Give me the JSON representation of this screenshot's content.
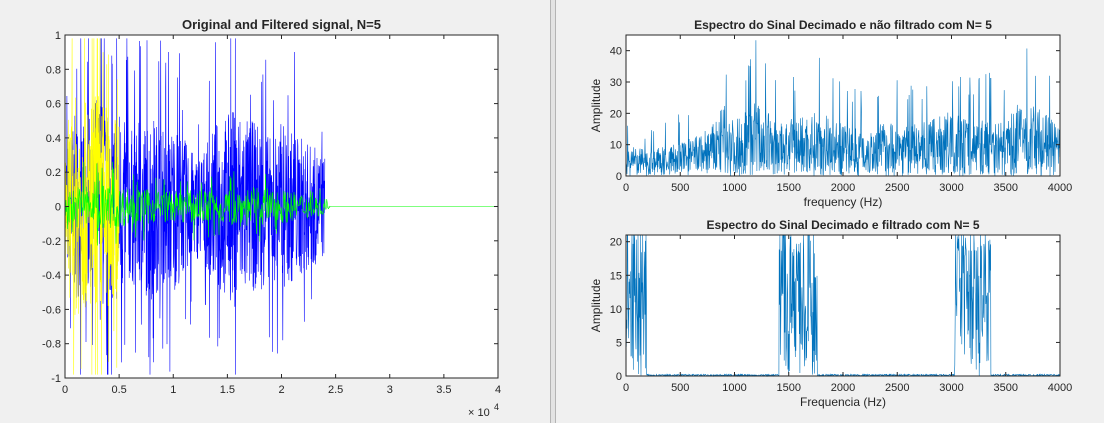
{
  "colors": {
    "figure_bg": "#f0f0f0",
    "axes_bg": "#ffffff",
    "axis": "#262626",
    "original": "#0000ff",
    "filtered": "#00ff00",
    "highlight": "#ffff00",
    "spectrum": "#0072bd"
  },
  "chart_data": [
    {
      "type": "line",
      "title": "Original and Filtered signal, N=5",
      "xlabel": "",
      "ylabel": "",
      "xlim": [
        0,
        40000
      ],
      "ylim": [
        -1,
        1
      ],
      "x_ticks": [
        0,
        5000,
        10000,
        15000,
        20000,
        25000,
        30000,
        35000,
        40000
      ],
      "x_tick_labels": [
        "0",
        "0.5",
        "1",
        "1.5",
        "2",
        "2.5",
        "3",
        "3.5",
        "4"
      ],
      "x_exponent_label": "× 10",
      "x_exponent_power": "4",
      "y_ticks": [
        -1,
        -0.8,
        -0.6,
        -0.4,
        -0.2,
        0,
        0.2,
        0.4,
        0.6,
        0.8,
        1
      ],
      "y_tick_labels": [
        "-1",
        "-0.8",
        "-0.6",
        "-0.4",
        "-0.2",
        "0",
        "0.2",
        "0.4",
        "0.6",
        "0.8",
        "1"
      ],
      "grid": false,
      "series": [
        {
          "color": "#0000ff",
          "x_range": [
            0,
            24000
          ],
          "envelope": [
            [
              0,
              0.35
            ],
            [
              1000,
              0.55
            ],
            [
              2000,
              0.45
            ],
            [
              3000,
              0.7
            ],
            [
              4000,
              0.55
            ],
            [
              5000,
              0.6
            ],
            [
              6000,
              0.45
            ],
            [
              7000,
              0.5
            ],
            [
              8000,
              0.55
            ],
            [
              9000,
              0.45
            ],
            [
              10000,
              0.5
            ],
            [
              11000,
              0.4
            ],
            [
              12000,
              0.3
            ],
            [
              13000,
              0.35
            ],
            [
              14000,
              0.5
            ],
            [
              15000,
              0.55
            ],
            [
              16000,
              0.6
            ],
            [
              17000,
              0.5
            ],
            [
              18000,
              0.5
            ],
            [
              19000,
              0.4
            ],
            [
              20000,
              0.5
            ],
            [
              21000,
              0.45
            ],
            [
              22000,
              0.4
            ],
            [
              23000,
              0.35
            ],
            [
              24000,
              0.3
            ]
          ]
        },
        {
          "color": "#ffff00",
          "x_range": [
            0,
            5000
          ],
          "envelope": [
            [
              0,
              0.45
            ],
            [
              1000,
              0.65
            ],
            [
              2000,
              0.6
            ],
            [
              3000,
              0.7
            ],
            [
              4000,
              0.6
            ],
            [
              5000,
              0.5
            ]
          ]
        },
        {
          "color": "#00ff00",
          "x_range": [
            0,
            40000
          ],
          "envelope": [
            [
              0,
              0.08
            ],
            [
              1000,
              0.12
            ],
            [
              3000,
              0.15
            ],
            [
              5000,
              0.12
            ],
            [
              8000,
              0.1
            ],
            [
              10000,
              0.09
            ],
            [
              14000,
              0.1
            ],
            [
              16000,
              0.12
            ],
            [
              20000,
              0.1
            ],
            [
              24000,
              0.05
            ],
            [
              24500,
              0.0
            ],
            [
              40000,
              0.0
            ]
          ]
        }
      ]
    },
    {
      "type": "line",
      "title": "Espectro do Sinal Decimado e não filtrado com N= 5",
      "xlabel": "frequency (Hz)",
      "ylabel": "Amplitude",
      "xlim": [
        0,
        4000
      ],
      "ylim": [
        0,
        45
      ],
      "x_ticks": [
        0,
        500,
        1000,
        1500,
        2000,
        2500,
        3000,
        3500,
        4000
      ],
      "x_tick_labels": [
        "0",
        "500",
        "1000",
        "1500",
        "2000",
        "2500",
        "3000",
        "3500",
        "4000"
      ],
      "y_ticks": [
        0,
        10,
        20,
        30,
        40
      ],
      "y_tick_labels": [
        "0",
        "10",
        "20",
        "30",
        "40"
      ],
      "grid": false,
      "series": [
        {
          "color": "#0072bd",
          "envelope": [
            [
              0,
              18
            ],
            [
              200,
              15
            ],
            [
              400,
              18
            ],
            [
              600,
              22
            ],
            [
              800,
              30
            ],
            [
              900,
              42
            ],
            [
              1000,
              32
            ],
            [
              1200,
              45
            ],
            [
              1400,
              30
            ],
            [
              1600,
              35
            ],
            [
              1800,
              38
            ],
            [
              2000,
              30
            ],
            [
              2200,
              28
            ],
            [
              2400,
              32
            ],
            [
              2600,
              30
            ],
            [
              2800,
              32
            ],
            [
              3000,
              38
            ],
            [
              3200,
              32
            ],
            [
              3400,
              35
            ],
            [
              3500,
              30
            ],
            [
              3600,
              42
            ],
            [
              3800,
              40
            ],
            [
              4000,
              28
            ]
          ]
        }
      ]
    },
    {
      "type": "line",
      "title": "Espectro do Sinal Decimado e filtrado com N= 5",
      "xlabel": "Frequencia (Hz)",
      "ylabel": "Amplitude",
      "xlim": [
        0,
        4000
      ],
      "ylim": [
        0,
        21
      ],
      "x_ticks": [
        0,
        500,
        1000,
        1500,
        2000,
        2500,
        3000,
        3500,
        4000
      ],
      "x_tick_labels": [
        "0",
        "500",
        "1000",
        "1500",
        "2000",
        "2500",
        "3000",
        "3500",
        "4000"
      ],
      "y_ticks": [
        0,
        5,
        10,
        15,
        20
      ],
      "y_tick_labels": [
        "0",
        "5",
        "10",
        "15",
        "20"
      ],
      "grid": false,
      "series": [
        {
          "color": "#0072bd",
          "bands": [
            [
              0,
              190,
              21
            ],
            [
              1410,
              1760,
              21
            ],
            [
              3030,
              3360,
              21
            ]
          ]
        }
      ]
    }
  ]
}
